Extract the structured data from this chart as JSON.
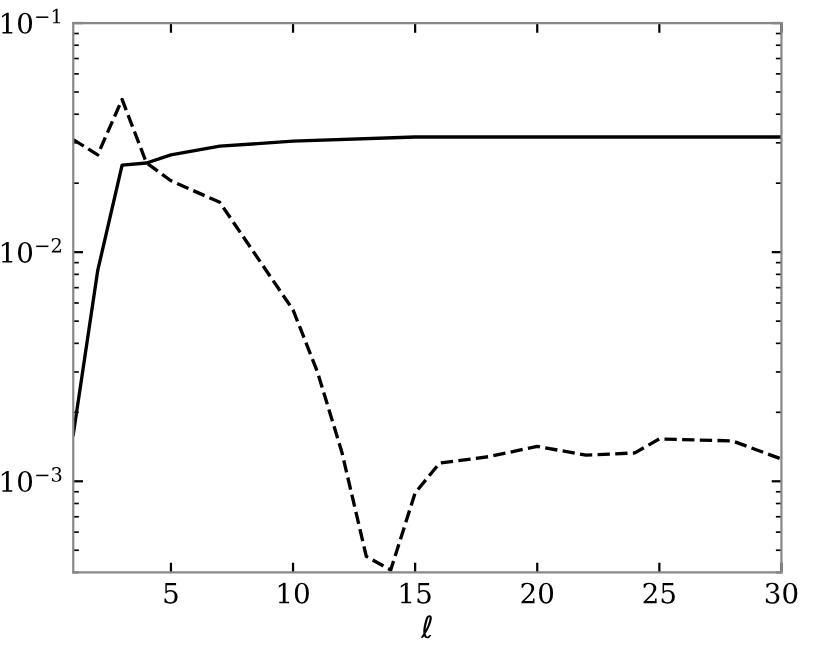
{
  "chart_data": {
    "type": "line",
    "xlabel": "ℓ",
    "log": "y",
    "grid": false,
    "legend": false,
    "marker": "none",
    "xlim": [
      1,
      30
    ],
    "xticks": [
      5,
      10,
      15,
      20,
      25,
      30
    ],
    "ylim": [
      0.0004,
      0.1
    ],
    "yticks": [
      {
        "value": 0.001,
        "label": "10$^{−3}$"
      },
      {
        "value": 0.01,
        "label": "10$^{−2}$"
      },
      {
        "value": 0.1,
        "label": "10$^{−1}$"
      }
    ],
    "series": [
      {
        "color": "#000000",
        "line_style": "solid",
        "x": [
          1,
          2,
          3,
          4,
          5,
          7,
          10,
          15,
          20,
          25,
          30
        ],
        "values": [
          0.0016,
          0.0083,
          0.024,
          0.0245,
          0.0266,
          0.029,
          0.0305,
          0.0318,
          0.0318,
          0.0318,
          0.0318
        ]
      },
      {
        "color": "#000000",
        "line_style": "dashed",
        "x": [
          1,
          2,
          3,
          4,
          5,
          7,
          10,
          11,
          12,
          13,
          14,
          15,
          16,
          18,
          20,
          22,
          24,
          25,
          28,
          30
        ],
        "values": [
          0.031,
          0.0266,
          0.0464,
          0.0245,
          0.0205,
          0.0165,
          0.0056,
          0.003,
          0.00134,
          0.00047,
          0.00041,
          0.00089,
          0.0012,
          0.00128,
          0.00142,
          0.0013,
          0.00133,
          0.00153,
          0.0015,
          0.00125
        ]
      }
    ]
  }
}
